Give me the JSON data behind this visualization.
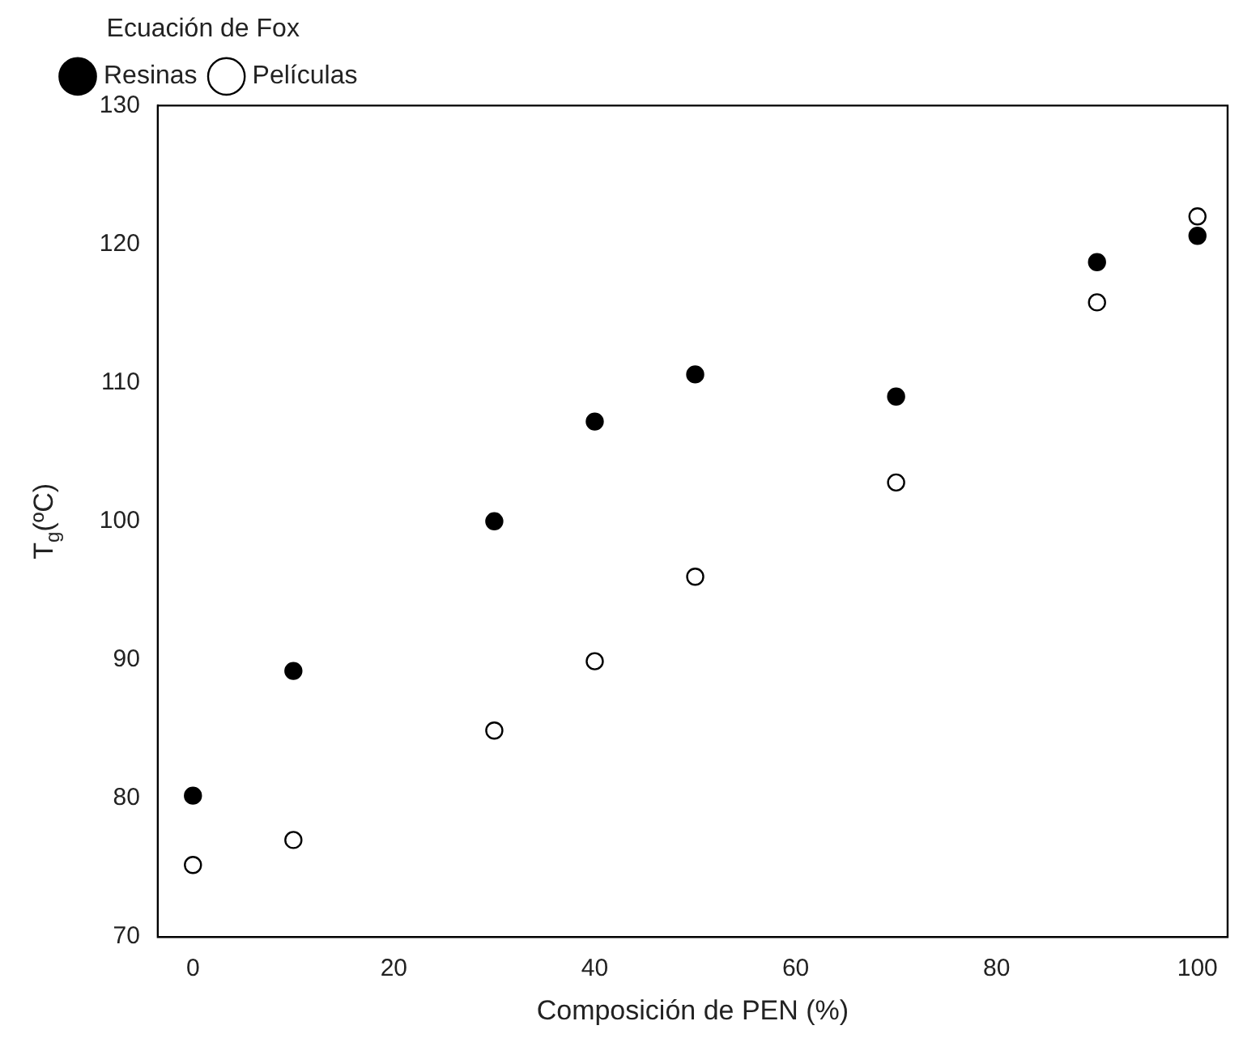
{
  "chart_data": {
    "type": "scatter",
    "xlabel": "Composición de PEN (%)",
    "ylabel": "T$_{g}$(ºC)",
    "legend_title": "Ecuación de Fox",
    "legend": "top left",
    "marker": "circle",
    "grid": false,
    "xlim": [
      -3.5,
      103
    ],
    "xticks": [
      0,
      20,
      40,
      60,
      80,
      100
    ],
    "ylim": [
      70,
      130
    ],
    "yticks": [
      70,
      80,
      90,
      100,
      110,
      120,
      130
    ],
    "series": [
      {
        "name": "Resinas",
        "color": "#000000",
        "x": [
          0,
          10,
          30,
          40,
          50,
          70,
          90,
          100
        ],
        "values": [
          80.2,
          89.2,
          100,
          107.2,
          110.6,
          109,
          118.7,
          120.6
        ]
      },
      {
        "name": "Películas",
        "color": "#ffffff",
        "x": [
          0,
          10,
          30,
          40,
          50,
          70,
          90,
          100
        ],
        "values": [
          75.2,
          77,
          84.9,
          89.9,
          96,
          102.8,
          115.8,
          122
        ]
      }
    ]
  }
}
